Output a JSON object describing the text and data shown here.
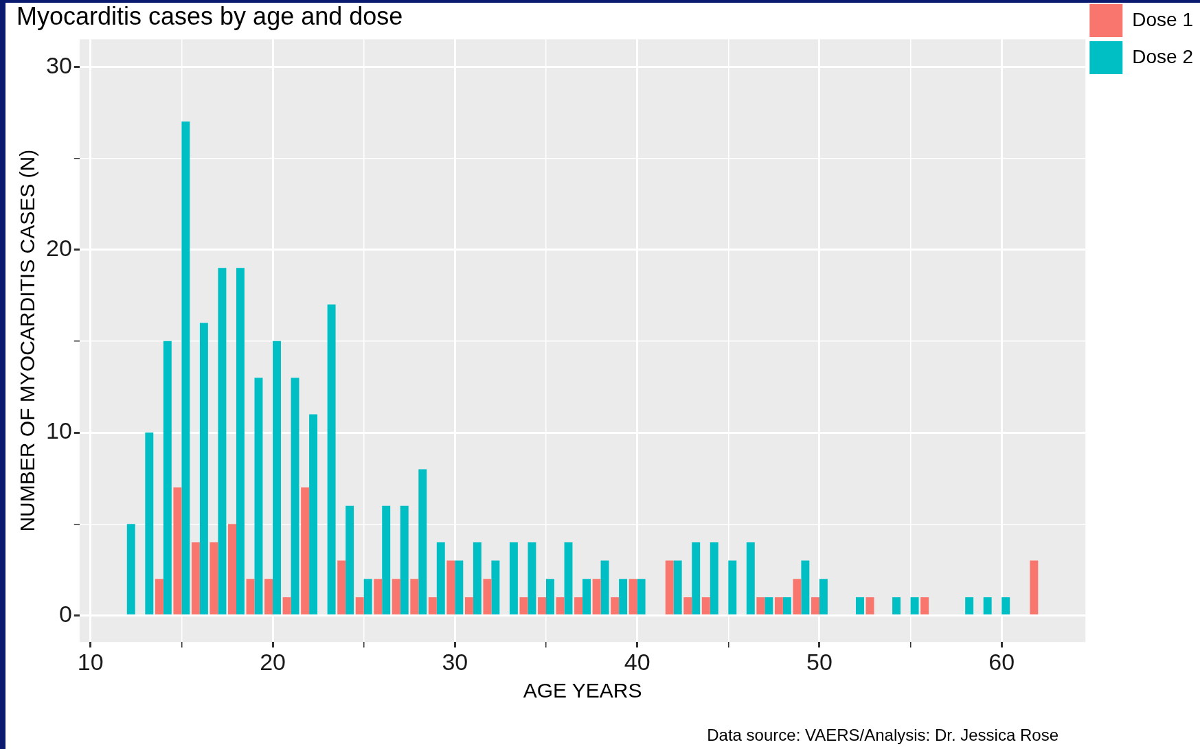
{
  "chart_data": {
    "type": "bar",
    "title": "Myocarditis cases by age and dose",
    "xlabel": "AGE YEARS",
    "ylabel": "NUMBER OF MYOCARDITIS CASES (N)",
    "annotations": [
      "Data source: VAERS/Analysis: Dr. Jessica Rose"
    ],
    "x": [
      12,
      13,
      14,
      15,
      16,
      17,
      18,
      19,
      20,
      21,
      22,
      23,
      24,
      25,
      26,
      27,
      28,
      29,
      30,
      31,
      32,
      33,
      34,
      35,
      36,
      37,
      38,
      39,
      40,
      41,
      42,
      43,
      44,
      45,
      46,
      47,
      48,
      49,
      50,
      51,
      52,
      53,
      54,
      55,
      56,
      57,
      58,
      59,
      60,
      61,
      62
    ],
    "series": [
      {
        "name": "Dose 1",
        "color": "#f8766d",
        "values": [
          null,
          null,
          2,
          7,
          4,
          4,
          5,
          2,
          2,
          1,
          7,
          null,
          3,
          1,
          2,
          2,
          2,
          1,
          3,
          1,
          2,
          null,
          1,
          1,
          1,
          1,
          2,
          1,
          2,
          null,
          3,
          1,
          1,
          null,
          null,
          1,
          1,
          2,
          1,
          null,
          null,
          1,
          null,
          null,
          1,
          null,
          null,
          null,
          null,
          null,
          3
        ]
      },
      {
        "name": "Dose 2",
        "color": "#00bfc4",
        "values": [
          5,
          10,
          15,
          27,
          16,
          19,
          19,
          13,
          15,
          13,
          11,
          17,
          6,
          2,
          6,
          6,
          8,
          4,
          3,
          4,
          3,
          4,
          4,
          2,
          4,
          2,
          3,
          2,
          2,
          null,
          3,
          4,
          4,
          3,
          4,
          1,
          1,
          3,
          2,
          null,
          1,
          null,
          1,
          1,
          null,
          null,
          1,
          1,
          1,
          null,
          null
        ]
      }
    ],
    "xlim": [
      9.4,
      64.6
    ],
    "ylim": [
      -1.45,
      31.5
    ],
    "xticks": [
      10,
      {
        "value": 15,
        "label": null
      },
      20,
      {
        "value": 25,
        "label": null
      },
      30,
      {
        "value": 35,
        "label": null
      },
      40,
      {
        "value": 45,
        "label": null
      },
      50,
      {
        "value": 55,
        "label": null
      },
      60
    ],
    "yticks": [
      0,
      {
        "value": 5,
        "label": null
      },
      10,
      {
        "value": 15,
        "label": null
      },
      20,
      {
        "value": 25,
        "label": null
      },
      30
    ],
    "grid": true,
    "legend": "top right"
  }
}
